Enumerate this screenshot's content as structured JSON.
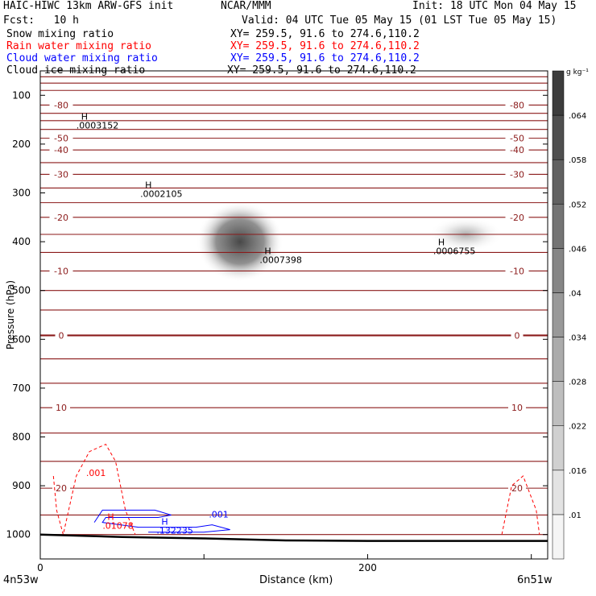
{
  "header": {
    "model": "HAIC-HIWC 13km ARW-GFS init",
    "org": "NCAR/MMM",
    "init": "Init: 18 UTC Mon 04 May 15",
    "fcst": "Fcst:   10 h",
    "valid": "Valid: 04 UTC Tue 05 May 15 (01 LST Tue 05 May 15)",
    "fields": [
      {
        "name": "Snow mixing ratio",
        "xy": "XY= 259.5, 91.6 to 274.6,110.2",
        "color": "#000000"
      },
      {
        "name": "Rain water mixing ratio",
        "xy": "XY= 259.5, 91.6 to 274.6,110.2",
        "color": "#ff0000"
      },
      {
        "name": "Cloud water mixing ratio",
        "xy": "XY= 259.5, 91.6 to 274.6,110.2",
        "color": "#0000ff"
      },
      {
        "name": "Cloud ice mixing ratio",
        "xy": "XY= 259.5, 91.6 to 274.6,110.2",
        "color": "#000000"
      }
    ]
  },
  "chart_data": {
    "type": "heatmap",
    "xlabel": "Distance (km)",
    "ylabel": "Pressure (hPa)",
    "xlim": [
      0,
      310
    ],
    "ylim": [
      1050,
      50
    ],
    "x_ticks": [
      0,
      100,
      200,
      300
    ],
    "x_tick_labels": [
      "0",
      "",
      "200",
      ""
    ],
    "y_ticks": [
      100,
      200,
      300,
      400,
      500,
      600,
      700,
      800,
      900,
      1000
    ],
    "endpoints": {
      "left": "4n53w",
      "right": "6n51w"
    },
    "colorbar": {
      "unit": "g kg⁻¹",
      "levels": [
        0.01,
        0.016,
        0.022,
        0.028,
        0.034,
        0.04,
        0.046,
        0.052,
        0.058,
        0.064
      ],
      "labels": [
        ".01",
        ".016",
        ".022",
        ".028",
        ".034",
        ".04",
        ".046",
        ".052",
        ".058",
        ".064"
      ]
    },
    "snow_shading": [
      {
        "x": 122,
        "p": 400,
        "peak": 0.064
      },
      {
        "x": 260,
        "p": 385,
        "peak": 0.028
      }
    ],
    "temperature_contours": [
      {
        "p": 62,
        "label": ""
      },
      {
        "p": 75,
        "label": ""
      },
      {
        "p": 90,
        "label": ""
      },
      {
        "p": 120,
        "label": "-80"
      },
      {
        "p": 137,
        "label": ""
      },
      {
        "p": 152,
        "label": ""
      },
      {
        "p": 170,
        "label": ""
      },
      {
        "p": 188,
        "label": "-50"
      },
      {
        "p": 212,
        "label": "-40"
      },
      {
        "p": 238,
        "label": ""
      },
      {
        "p": 262,
        "label": "-30"
      },
      {
        "p": 290,
        "label": ""
      },
      {
        "p": 320,
        "label": ""
      },
      {
        "p": 350,
        "label": "-20"
      },
      {
        "p": 385,
        "label": ""
      },
      {
        "p": 422,
        "label": ""
      },
      {
        "p": 460,
        "label": "-10"
      },
      {
        "p": 500,
        "label": ""
      },
      {
        "p": 540,
        "label": ""
      },
      {
        "p": 592,
        "label": "0"
      },
      {
        "p": 640,
        "label": ""
      },
      {
        "p": 690,
        "label": ""
      },
      {
        "p": 740,
        "label": "10"
      },
      {
        "p": 792,
        "label": ""
      },
      {
        "p": 850,
        "label": ""
      },
      {
        "p": 905,
        "label": "20"
      },
      {
        "p": 960,
        "label": ""
      },
      {
        "p": 1000,
        "label": ""
      }
    ],
    "maxima": [
      {
        "x": 25,
        "p": 150,
        "label": ".0003152",
        "color": "#000000"
      },
      {
        "x": 64,
        "p": 290,
        "label": ".0002105",
        "color": "#000000"
      },
      {
        "x": 137,
        "p": 425,
        "label": ".0007398",
        "color": "#000000"
      },
      {
        "x": 243,
        "p": 407,
        "label": ".0006755",
        "color": "#000000"
      },
      {
        "x": 41,
        "p": 970,
        "label": ".01078",
        "color": "#ff0000"
      },
      {
        "x": 74,
        "p": 980,
        "label": ".132235",
        "color": "#0000ff"
      }
    ],
    "contour_labels": [
      {
        "x": 28,
        "p": 880,
        "text": ".001",
        "color": "#ff0000"
      },
      {
        "x": 103,
        "p": 965,
        "text": ".001",
        "color": "#0000ff"
      }
    ],
    "rain_contour": [
      [
        8,
        880
      ],
      [
        10,
        950
      ],
      [
        14,
        1000
      ],
      [
        22,
        880
      ],
      [
        30,
        830
      ],
      [
        40,
        815
      ],
      [
        46,
        850
      ],
      [
        52,
        950
      ],
      [
        58,
        1000
      ]
    ],
    "rain_contour_right": [
      [
        282,
        1000
      ],
      [
        288,
        900
      ],
      [
        295,
        880
      ],
      [
        303,
        950
      ],
      [
        305,
        1000
      ]
    ],
    "cloud_water_contour": [
      [
        33,
        975
      ],
      [
        38,
        950
      ],
      [
        70,
        950
      ],
      [
        80,
        960
      ],
      [
        72,
        965
      ],
      [
        40,
        965
      ],
      [
        38,
        975
      ],
      [
        60,
        985
      ],
      [
        95,
        985
      ],
      [
        105,
        980
      ],
      [
        116,
        990
      ],
      [
        100,
        995
      ],
      [
        66,
        995
      ]
    ],
    "terrain": [
      [
        0,
        1000
      ],
      [
        50,
        1005
      ],
      [
        100,
        1008
      ],
      [
        150,
        1012
      ],
      [
        200,
        1013
      ],
      [
        250,
        1013
      ],
      [
        310,
        1013
      ]
    ]
  }
}
